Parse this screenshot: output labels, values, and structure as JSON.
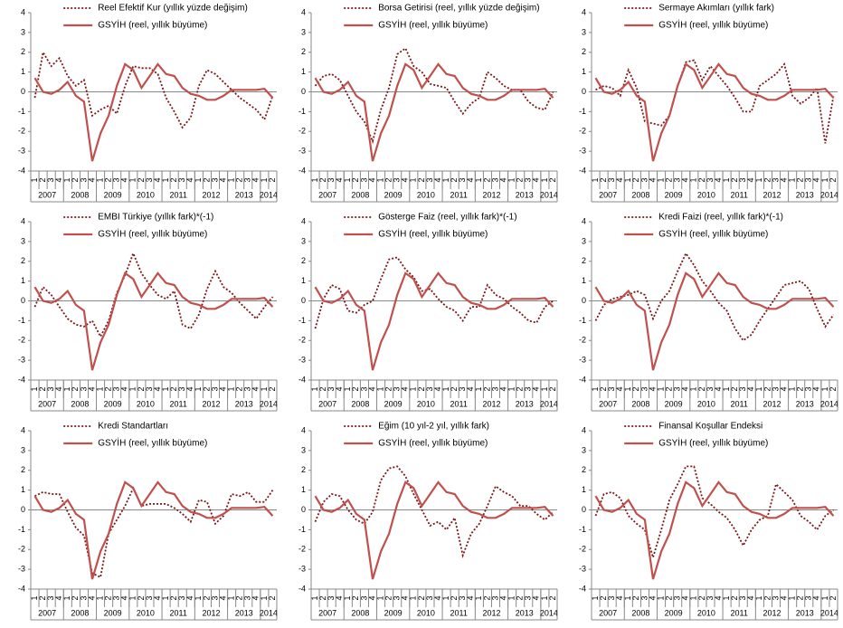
{
  "chart_data": [
    {
      "type": "line",
      "ylim": [
        -4,
        4
      ],
      "yticks": [
        -4,
        -3,
        -2,
        -1,
        0,
        1,
        2,
        3,
        4
      ],
      "categories": [
        "1",
        "2",
        "3",
        "4",
        "1",
        "2",
        "3",
        "4",
        "1",
        "2",
        "3",
        "4",
        "1",
        "2",
        "3",
        "4",
        "1",
        "2",
        "3",
        "4",
        "1",
        "2",
        "3",
        "4",
        "1",
        "2",
        "3",
        "4",
        "1",
        "2"
      ],
      "x_groups": [
        "2007",
        "2008",
        "2009",
        "2010",
        "2011",
        "2012",
        "2013",
        "2014"
      ],
      "series": [
        {
          "name": "Reel Efektif Kur (yıllık yüzde değişim)",
          "color": "#7f1416",
          "style": "dotted",
          "values": [
            -0.3,
            2.0,
            1.3,
            1.7,
            0.8,
            0.3,
            0.6,
            -1.2,
            -0.9,
            -0.7,
            -1.1,
            0.3,
            1.3,
            1.2,
            1.2,
            0.9,
            -0.3,
            -1.0,
            -1.8,
            -1.3,
            0.3,
            1.1,
            0.9,
            0.5,
            0.1,
            -0.3,
            -0.6,
            -0.9,
            -1.4,
            -0.2
          ]
        },
        {
          "name": "GSYİH (reel, yıllık büyüme)",
          "color": "#c0504d",
          "style": "solid",
          "values": [
            0.7,
            0.0,
            -0.1,
            0.1,
            0.5,
            -0.2,
            -0.5,
            -3.5,
            -2.1,
            -1.2,
            0.3,
            1.4,
            1.1,
            0.2,
            0.8,
            1.4,
            0.9,
            0.8,
            0.2,
            -0.1,
            -0.2,
            -0.4,
            -0.4,
            -0.2,
            0.1,
            0.1,
            0.1,
            0.1,
            0.15,
            -0.3
          ]
        }
      ]
    },
    {
      "type": "line",
      "ylim": [
        -4,
        4
      ],
      "yticks": [
        -4,
        -3,
        -2,
        -1,
        0,
        1,
        2,
        3,
        4
      ],
      "categories": [
        "1",
        "2",
        "3",
        "4",
        "1",
        "2",
        "3",
        "4",
        "1",
        "2",
        "3",
        "4",
        "1",
        "2",
        "3",
        "4",
        "1",
        "2",
        "3",
        "4",
        "1",
        "2",
        "3",
        "4",
        "1",
        "2",
        "3",
        "4",
        "1",
        "2"
      ],
      "x_groups": [
        "2007",
        "2008",
        "2009",
        "2010",
        "2011",
        "2012",
        "2013",
        "2014"
      ],
      "series": [
        {
          "name": "Borsa Getirisi (reel, yıllık yüzde değişim)",
          "color": "#7f1416",
          "style": "dotted",
          "values": [
            0.3,
            0.8,
            0.9,
            0.6,
            -0.2,
            -1.0,
            -1.5,
            -2.5,
            -0.9,
            0.2,
            1.9,
            2.2,
            1.3,
            1.0,
            0.4,
            0.3,
            0.2,
            -0.5,
            -1.1,
            -0.6,
            -0.3,
            1.0,
            0.7,
            0.3,
            0.1,
            0.1,
            -0.5,
            -0.8,
            -0.9,
            0.0
          ]
        },
        {
          "name": "GSYİH (reel, yıllık büyüme)",
          "color": "#c0504d",
          "style": "solid",
          "values": [
            0.7,
            0.0,
            -0.1,
            0.1,
            0.5,
            -0.2,
            -0.5,
            -3.5,
            -2.1,
            -1.2,
            0.3,
            1.4,
            1.1,
            0.2,
            0.8,
            1.4,
            0.9,
            0.8,
            0.2,
            -0.1,
            -0.2,
            -0.4,
            -0.4,
            -0.2,
            0.1,
            0.1,
            0.1,
            0.1,
            0.15,
            -0.3
          ]
        }
      ]
    },
    {
      "type": "line",
      "ylim": [
        -4,
        4
      ],
      "yticks": [
        -4,
        -3,
        -2,
        -1,
        0,
        1,
        2,
        3,
        4
      ],
      "categories": [
        "1",
        "2",
        "3",
        "4",
        "1",
        "2",
        "3",
        "4",
        "1",
        "2",
        "3",
        "4",
        "1",
        "2",
        "3",
        "4",
        "1",
        "2",
        "3",
        "4",
        "1",
        "2",
        "3",
        "4",
        "1",
        "2",
        "3",
        "4",
        "1",
        "2"
      ],
      "x_groups": [
        "2007",
        "2008",
        "2009",
        "2010",
        "2011",
        "2012",
        "2013",
        "2014"
      ],
      "series": [
        {
          "name": "Sermaye Akımları (yıllık fark)",
          "color": "#7f1416",
          "style": "dotted",
          "values": [
            0.1,
            0.3,
            0.2,
            -0.2,
            1.1,
            0.2,
            -1.5,
            -1.6,
            -1.7,
            -1.2,
            0.3,
            1.5,
            1.6,
            0.6,
            1.3,
            0.8,
            0.3,
            -0.3,
            -1.0,
            -1.0,
            0.3,
            0.6,
            0.9,
            1.4,
            -0.2,
            -0.6,
            -0.3,
            0.2,
            -2.6,
            -0.2
          ]
        },
        {
          "name": "GSYİH (reel, yıllık büyüme)",
          "color": "#c0504d",
          "style": "solid",
          "values": [
            0.7,
            0.0,
            -0.1,
            0.1,
            0.5,
            -0.2,
            -0.5,
            -3.5,
            -2.1,
            -1.2,
            0.3,
            1.4,
            1.1,
            0.2,
            0.8,
            1.4,
            0.9,
            0.8,
            0.2,
            -0.1,
            -0.2,
            -0.4,
            -0.4,
            -0.2,
            0.1,
            0.1,
            0.1,
            0.1,
            0.15,
            -0.3
          ]
        }
      ]
    },
    {
      "type": "line",
      "ylim": [
        -4,
        4
      ],
      "yticks": [
        -4,
        -3,
        -2,
        -1,
        0,
        1,
        2,
        3,
        4
      ],
      "categories": [
        "1",
        "2",
        "3",
        "4",
        "1",
        "2",
        "3",
        "4",
        "1",
        "2",
        "3",
        "4",
        "1",
        "2",
        "3",
        "4",
        "1",
        "2",
        "3",
        "4",
        "1",
        "2",
        "3",
        "4",
        "1",
        "2",
        "3",
        "4",
        "1",
        "2"
      ],
      "x_groups": [
        "2007",
        "2008",
        "2009",
        "2010",
        "2011",
        "2012",
        "2013",
        "2014"
      ],
      "series": [
        {
          "name": "EMBI Türkiye (yıllık fark)*(-1)",
          "color": "#7f1416",
          "style": "dotted",
          "values": [
            -0.3,
            0.7,
            0.3,
            -0.3,
            -0.9,
            -1.2,
            -1.3,
            -1.0,
            -1.8,
            -1.0,
            0.4,
            1.3,
            2.4,
            1.4,
            0.8,
            0.3,
            0.1,
            0.5,
            -1.2,
            -1.4,
            -0.7,
            0.6,
            1.5,
            0.7,
            0.4,
            -0.1,
            -0.5,
            -0.9,
            -0.3,
            0.2
          ]
        },
        {
          "name": "GSYİH (reel, yıllık büyüme)",
          "color": "#c0504d",
          "style": "solid",
          "values": [
            0.7,
            0.0,
            -0.1,
            0.1,
            0.5,
            -0.2,
            -0.5,
            -3.5,
            -2.1,
            -1.2,
            0.3,
            1.4,
            1.1,
            0.2,
            0.8,
            1.4,
            0.9,
            0.8,
            0.2,
            -0.1,
            -0.2,
            -0.4,
            -0.4,
            -0.2,
            0.1,
            0.1,
            0.1,
            0.1,
            0.15,
            -0.3
          ]
        }
      ]
    },
    {
      "type": "line",
      "ylim": [
        -4,
        4
      ],
      "yticks": [
        -4,
        -3,
        -2,
        -1,
        0,
        1,
        2,
        3,
        4
      ],
      "categories": [
        "1",
        "2",
        "3",
        "4",
        "1",
        "2",
        "3",
        "4",
        "1",
        "2",
        "3",
        "4",
        "1",
        "2",
        "3",
        "4",
        "1",
        "2",
        "3",
        "4",
        "1",
        "2",
        "3",
        "4",
        "1",
        "2",
        "3",
        "4",
        "1",
        "2"
      ],
      "x_groups": [
        "2007",
        "2008",
        "2009",
        "2010",
        "2011",
        "2012",
        "2013",
        "2014"
      ],
      "series": [
        {
          "name": "Gösterge Faiz (reel, yıllık fark)*(-1)",
          "color": "#7f1416",
          "style": "dotted",
          "values": [
            -1.4,
            0.1,
            0.8,
            0.6,
            -0.5,
            -0.6,
            -0.2,
            0.0,
            1.1,
            2.1,
            2.2,
            1.6,
            1.2,
            0.5,
            0.6,
            0.1,
            -0.3,
            -0.5,
            -1.0,
            -0.3,
            -0.3,
            0.8,
            0.3,
            0.1,
            -0.3,
            -0.6,
            -1.0,
            -1.1,
            -0.3,
            0.0
          ]
        },
        {
          "name": "GSYİH (reel, yıllık büyüme)",
          "color": "#c0504d",
          "style": "solid",
          "values": [
            0.7,
            0.0,
            -0.1,
            0.1,
            0.5,
            -0.2,
            -0.5,
            -3.5,
            -2.1,
            -1.2,
            0.3,
            1.4,
            1.1,
            0.2,
            0.8,
            1.4,
            0.9,
            0.8,
            0.2,
            -0.1,
            -0.2,
            -0.4,
            -0.4,
            -0.2,
            0.1,
            0.1,
            0.1,
            0.1,
            0.15,
            -0.3
          ]
        }
      ]
    },
    {
      "type": "line",
      "ylim": [
        -4,
        4
      ],
      "yticks": [
        -4,
        -3,
        -2,
        -1,
        0,
        1,
        2,
        3,
        4
      ],
      "categories": [
        "1",
        "2",
        "3",
        "4",
        "1",
        "2",
        "3",
        "4",
        "1",
        "2",
        "3",
        "4",
        "1",
        "2",
        "3",
        "4",
        "1",
        "2",
        "3",
        "4",
        "1",
        "2",
        "3",
        "4",
        "1",
        "2",
        "3",
        "4",
        "1",
        "2"
      ],
      "x_groups": [
        "2007",
        "2008",
        "2009",
        "2010",
        "2011",
        "2012",
        "2013",
        "2014"
      ],
      "series": [
        {
          "name": "Kredi Faizi (reel, yıllık fark)*(-1)",
          "color": "#7f1416",
          "style": "dotted",
          "values": [
            -1.0,
            -0.2,
            0.1,
            0.2,
            0.3,
            0.5,
            0.3,
            -0.9,
            0.0,
            0.5,
            1.5,
            2.4,
            1.8,
            1.0,
            0.5,
            -0.1,
            -0.5,
            -1.4,
            -2.0,
            -1.7,
            -1.0,
            -0.4,
            0.2,
            0.8,
            0.9,
            1.0,
            0.6,
            -0.4,
            -1.3,
            -0.7
          ]
        },
        {
          "name": "GSYİH (reel, yıllık büyüme)",
          "color": "#c0504d",
          "style": "solid",
          "values": [
            0.7,
            0.0,
            -0.1,
            0.1,
            0.5,
            -0.2,
            -0.5,
            -3.5,
            -2.1,
            -1.2,
            0.3,
            1.4,
            1.1,
            0.2,
            0.8,
            1.4,
            0.9,
            0.8,
            0.2,
            -0.1,
            -0.2,
            -0.4,
            -0.4,
            -0.2,
            0.1,
            0.1,
            0.1,
            0.1,
            0.15,
            -0.3
          ]
        }
      ]
    },
    {
      "type": "line",
      "ylim": [
        -4,
        4
      ],
      "yticks": [
        -4,
        -3,
        -2,
        -1,
        0,
        1,
        2,
        3,
        4
      ],
      "categories": [
        "1",
        "2",
        "3",
        "4",
        "1",
        "2",
        "3",
        "4",
        "1",
        "2",
        "3",
        "4",
        "1",
        "2",
        "3",
        "4",
        "1",
        "2",
        "3",
        "4",
        "1",
        "2",
        "3",
        "4",
        "1",
        "2",
        "3",
        "4",
        "1",
        "2"
      ],
      "x_groups": [
        "2007",
        "2008",
        "2009",
        "2010",
        "2011",
        "2012",
        "2013",
        "2014"
      ],
      "series": [
        {
          "name": "Kredi Standartları",
          "color": "#7f1416",
          "style": "dotted",
          "values": [
            0.7,
            0.9,
            0.8,
            0.8,
            -0.1,
            -0.9,
            -1.3,
            -3.2,
            -3.4,
            -1.2,
            -0.5,
            0.2,
            1.1,
            0.2,
            0.3,
            0.3,
            0.3,
            0.1,
            -0.2,
            -0.6,
            0.5,
            0.4,
            -0.7,
            -0.3,
            0.8,
            0.7,
            0.9,
            0.4,
            0.4,
            1.0
          ]
        },
        {
          "name": "GSYİH (reel, yıllık büyüme)",
          "color": "#c0504d",
          "style": "solid",
          "values": [
            0.7,
            0.0,
            -0.1,
            0.1,
            0.5,
            -0.2,
            -0.5,
            -3.5,
            -2.1,
            -1.2,
            0.3,
            1.4,
            1.1,
            0.2,
            0.8,
            1.4,
            0.9,
            0.8,
            0.2,
            -0.1,
            -0.2,
            -0.4,
            -0.4,
            -0.2,
            0.1,
            0.1,
            0.1,
            0.1,
            0.15,
            -0.3
          ]
        }
      ]
    },
    {
      "type": "line",
      "ylim": [
        -4,
        4
      ],
      "yticks": [
        -4,
        -3,
        -2,
        -1,
        0,
        1,
        2,
        3,
        4
      ],
      "categories": [
        "1",
        "2",
        "3",
        "4",
        "1",
        "2",
        "3",
        "4",
        "1",
        "2",
        "3",
        "4",
        "1",
        "2",
        "3",
        "4",
        "1",
        "2",
        "3",
        "4",
        "1",
        "2",
        "3",
        "4",
        "1",
        "2",
        "3",
        "4",
        "1",
        "2"
      ],
      "x_groups": [
        "2007",
        "2008",
        "2009",
        "2010",
        "2011",
        "2012",
        "2013",
        "2014"
      ],
      "series": [
        {
          "name": "Eğim (10 yıl-2 yıl, yıllık fark)",
          "color": "#7f1416",
          "style": "dotted",
          "values": [
            -0.6,
            0.4,
            0.8,
            0.7,
            0.0,
            -0.5,
            -0.7,
            -0.1,
            1.5,
            2.1,
            2.2,
            1.7,
            0.8,
            0.0,
            -0.8,
            -0.6,
            -1.0,
            -0.4,
            -2.3,
            -1.2,
            -0.7,
            0.2,
            1.2,
            0.9,
            0.7,
            0.2,
            0.2,
            -0.2,
            -0.5,
            -0.1
          ]
        },
        {
          "name": "GSYİH (reel, yıllık büyüme)",
          "color": "#c0504d",
          "style": "solid",
          "values": [
            0.7,
            0.0,
            -0.1,
            0.1,
            0.5,
            -0.2,
            -0.5,
            -3.5,
            -2.1,
            -1.2,
            0.3,
            1.4,
            1.1,
            0.2,
            0.8,
            1.4,
            0.9,
            0.8,
            0.2,
            -0.1,
            -0.2,
            -0.4,
            -0.4,
            -0.2,
            0.1,
            0.1,
            0.1,
            0.1,
            0.15,
            -0.3
          ]
        }
      ]
    },
    {
      "type": "line",
      "ylim": [
        -4,
        4
      ],
      "yticks": [
        -4,
        -3,
        -2,
        -1,
        0,
        1,
        2,
        3,
        4
      ],
      "categories": [
        "1",
        "2",
        "3",
        "4",
        "1",
        "2",
        "3",
        "4",
        "1",
        "2",
        "3",
        "4",
        "1",
        "2",
        "3",
        "4",
        "1",
        "2",
        "3",
        "4",
        "1",
        "2",
        "3",
        "4",
        "1",
        "2",
        "3",
        "4",
        "1",
        "2"
      ],
      "x_groups": [
        "2007",
        "2008",
        "2009",
        "2010",
        "2011",
        "2012",
        "2013",
        "2014"
      ],
      "series": [
        {
          "name": "Finansal Koşullar Endeksi",
          "color": "#7f1416",
          "style": "dotted",
          "values": [
            -0.3,
            0.8,
            0.9,
            0.6,
            -0.3,
            -0.7,
            -1.0,
            -2.4,
            -1.0,
            0.5,
            1.3,
            2.2,
            2.2,
            0.6,
            0.3,
            -0.1,
            -0.4,
            -1.0,
            -1.8,
            -1.0,
            -0.5,
            -0.3,
            1.3,
            0.9,
            0.5,
            -0.3,
            -0.6,
            -1.0,
            -0.3,
            0.0
          ]
        },
        {
          "name": "GSYİH (reel, yıllık büyüme)",
          "color": "#c0504d",
          "style": "solid",
          "values": [
            0.7,
            0.0,
            -0.1,
            0.1,
            0.5,
            -0.2,
            -0.5,
            -3.5,
            -2.1,
            -1.2,
            0.3,
            1.4,
            1.1,
            0.2,
            0.8,
            1.4,
            0.9,
            0.8,
            0.2,
            -0.1,
            -0.2,
            -0.4,
            -0.4,
            -0.2,
            0.1,
            0.1,
            0.1,
            0.1,
            0.15,
            -0.3
          ]
        }
      ]
    }
  ]
}
